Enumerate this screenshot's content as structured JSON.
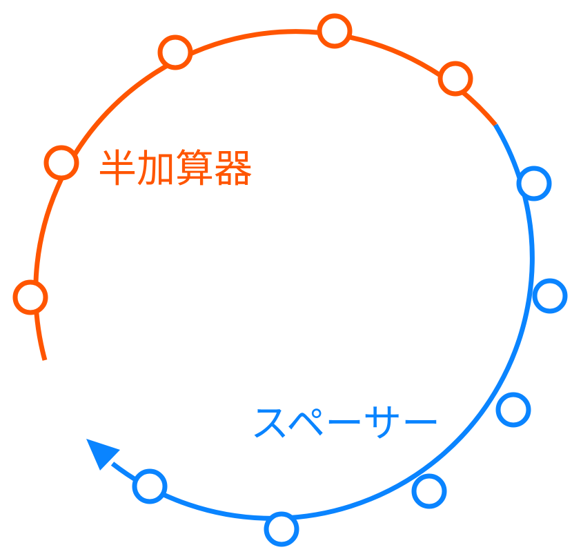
{
  "labels": {
    "orange": "半加算器",
    "blue": "スペーサー"
  },
  "colors": {
    "orange": "#FF5500",
    "blue": "#0A84FF",
    "background": "#FFFFFF"
  }
}
